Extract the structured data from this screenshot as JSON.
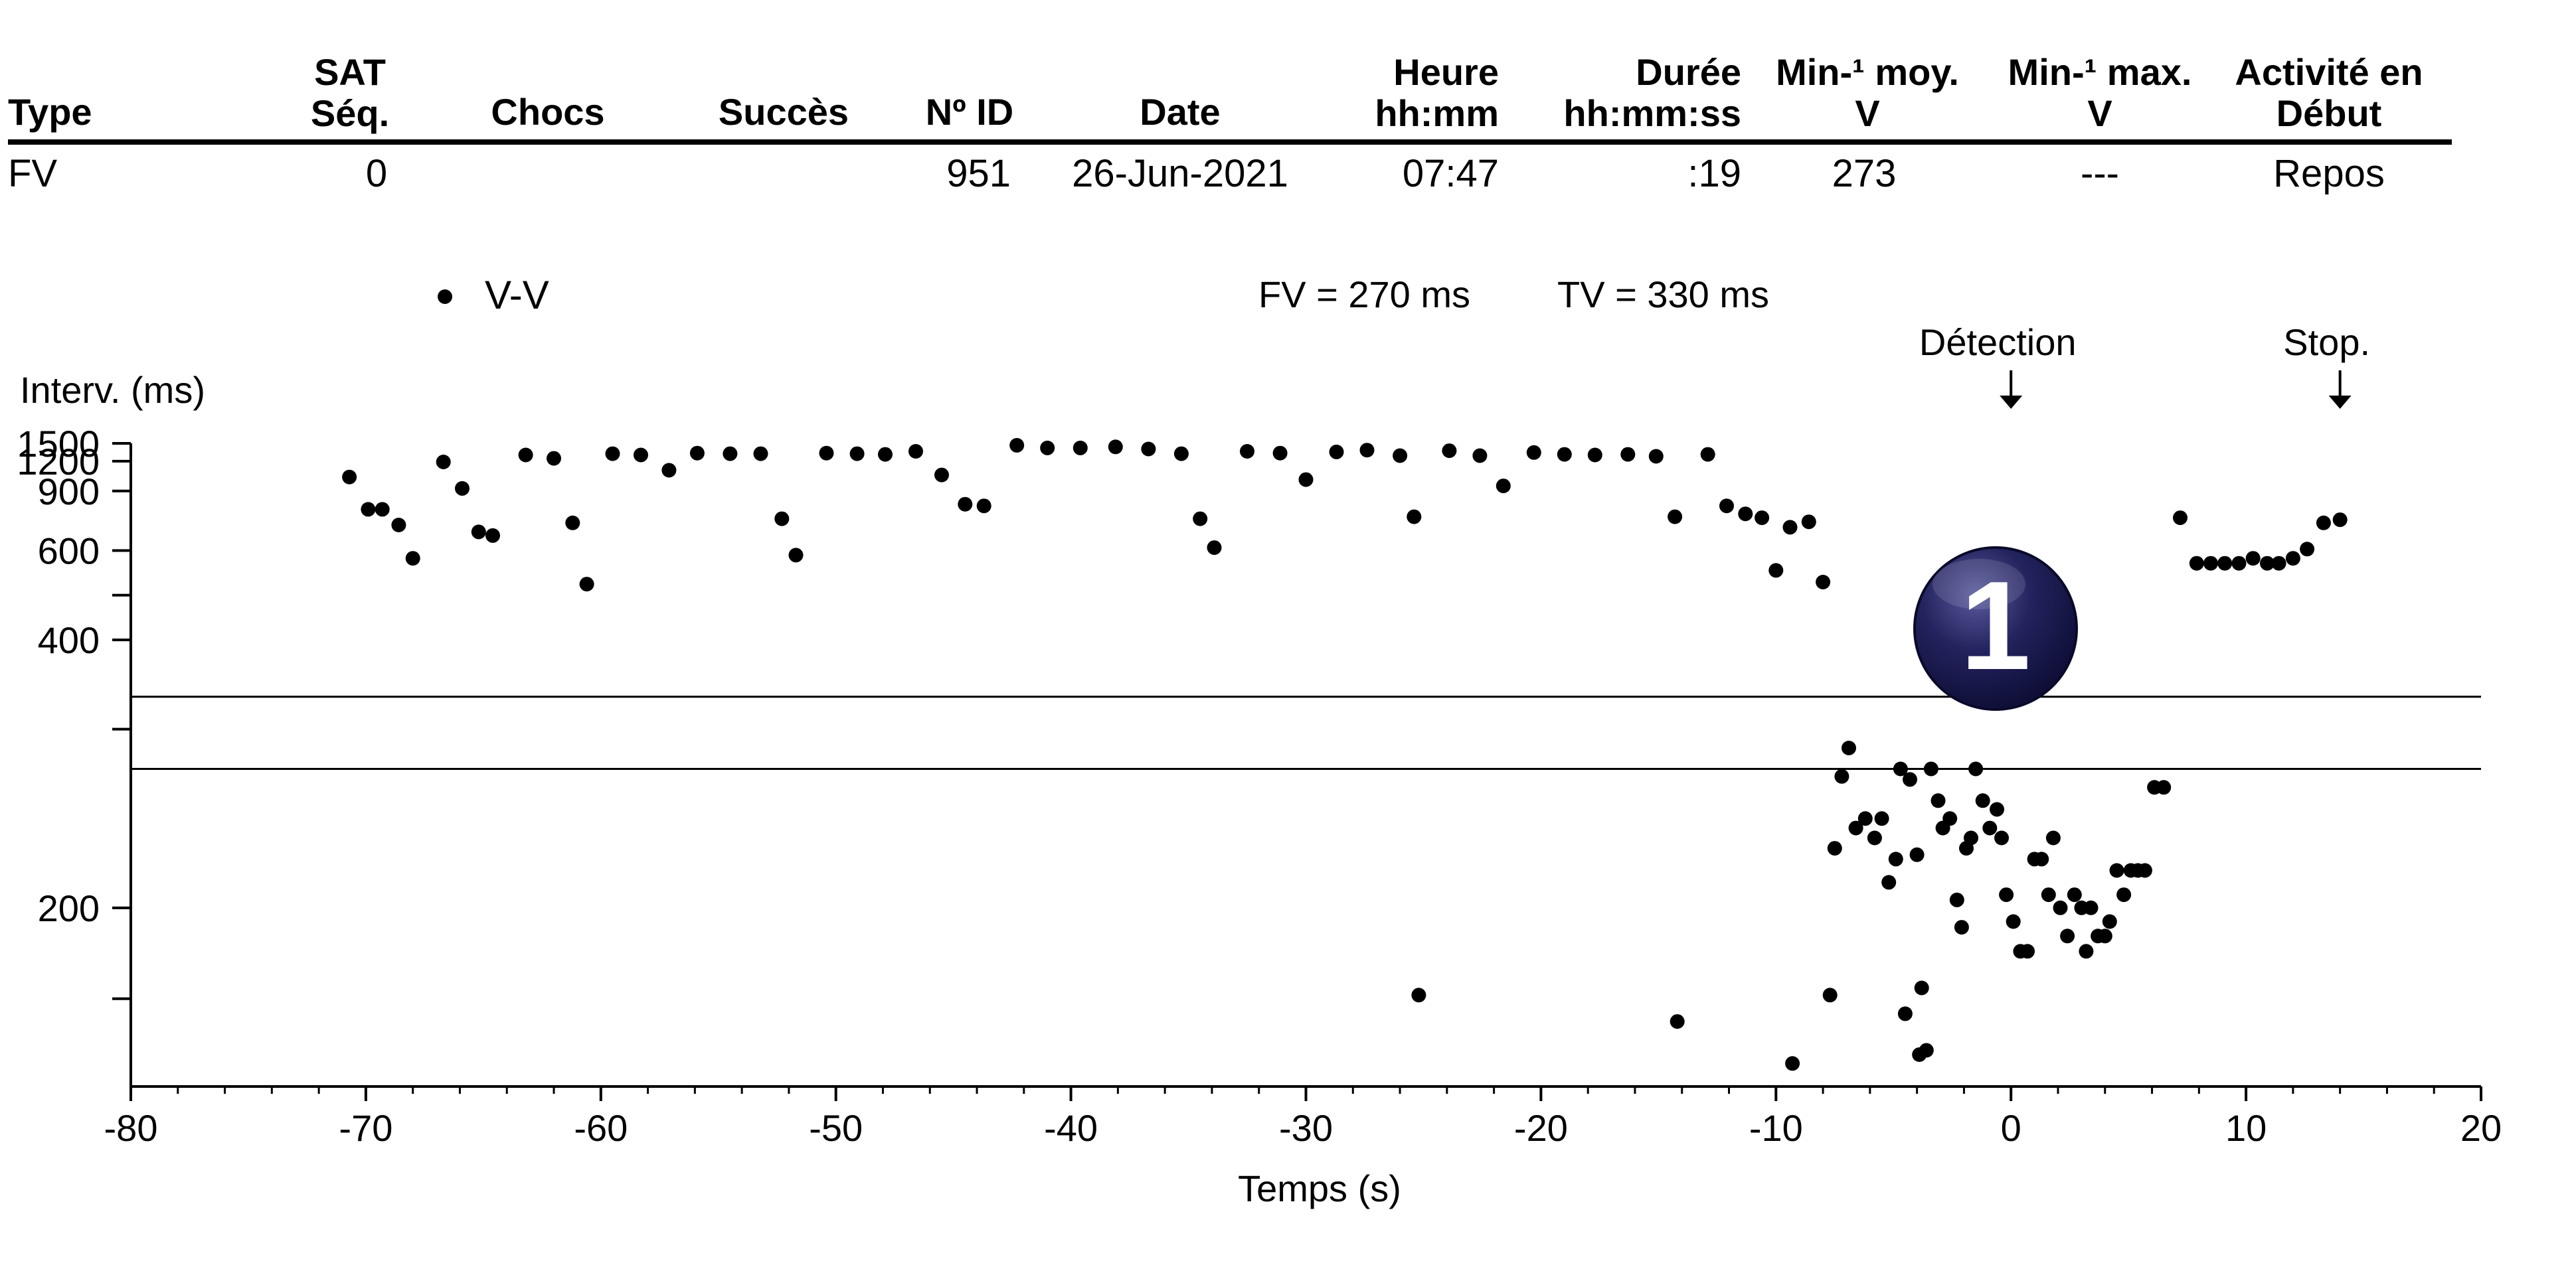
{
  "table": {
    "headers": [
      {
        "key": "type",
        "lines": [
          "Type"
        ]
      },
      {
        "key": "sat",
        "lines": [
          "SAT",
          "Séq."
        ]
      },
      {
        "key": "chocs",
        "lines": [
          "Chocs"
        ]
      },
      {
        "key": "succes",
        "lines": [
          "Succès"
        ]
      },
      {
        "key": "id",
        "lines": [
          "Nº ID"
        ]
      },
      {
        "key": "date",
        "lines": [
          "Date"
        ]
      },
      {
        "key": "heure",
        "lines": [
          "Heure",
          "hh:mm"
        ]
      },
      {
        "key": "duree",
        "lines": [
          "Durée",
          "hh:mm:ss"
        ]
      },
      {
        "key": "moy",
        "lines": [
          "Min-¹ moy.",
          "V"
        ]
      },
      {
        "key": "max",
        "lines": [
          "Min-¹ max.",
          "V"
        ]
      },
      {
        "key": "activite",
        "lines": [
          "Activité en",
          "Début"
        ]
      }
    ],
    "row": {
      "type": "FV",
      "sat": "0",
      "chocs": "",
      "succes": "",
      "id": "951",
      "date": "26-Jun-2021",
      "heure": "07:47",
      "duree": ":19",
      "moy": "273",
      "max": "---",
      "activite": "Repos"
    }
  },
  "episode_badge": "1",
  "chart_data": {
    "type": "scatter",
    "legend": {
      "marker": "dot",
      "label": "V-V",
      "position": "top-left"
    },
    "ylabel": "Interv. (ms)",
    "xlabel": "Temps (s)",
    "xlim": [
      -80,
      20
    ],
    "x_ticks": [
      -80,
      -70,
      -60,
      -50,
      -40,
      -30,
      -20,
      -10,
      0,
      10,
      20
    ],
    "y_scale": "reciprocal",
    "ylim": [
      150,
      1500
    ],
    "y_tick_labels": [
      1500,
      1200,
      900,
      600,
      400,
      200
    ],
    "y_minor_ticks": [
      480,
      300,
      171
    ],
    "thresholds": [
      {
        "label": "FV = 270 ms",
        "value": 270
      },
      {
        "label": "TV = 330 ms",
        "value": 330
      }
    ],
    "annotations": [
      {
        "label": "Détection",
        "x": 0
      },
      {
        "label": "Stop.",
        "x": 14
      }
    ],
    "series": [
      {
        "points": [
          [
            -70.7,
            1020
          ],
          [
            -69.9,
            780
          ],
          [
            -69.3,
            780
          ],
          [
            -68.6,
            700
          ],
          [
            -68.0,
            575
          ],
          [
            -66.7,
            1190
          ],
          [
            -65.9,
            920
          ],
          [
            -65.2,
            670
          ],
          [
            -64.6,
            655
          ],
          [
            -63.2,
            1290
          ],
          [
            -62.0,
            1240
          ],
          [
            -61.2,
            710
          ],
          [
            -60.6,
            505
          ],
          [
            -59.5,
            1310
          ],
          [
            -58.3,
            1290
          ],
          [
            -57.1,
            1090
          ],
          [
            -55.9,
            1320
          ],
          [
            -54.5,
            1310
          ],
          [
            -53.2,
            1310
          ],
          [
            -52.3,
            730
          ],
          [
            -51.7,
            585
          ],
          [
            -50.4,
            1320
          ],
          [
            -49.1,
            1310
          ],
          [
            -47.9,
            1300
          ],
          [
            -46.6,
            1350
          ],
          [
            -45.5,
            1040
          ],
          [
            -44.5,
            810
          ],
          [
            -43.7,
            800
          ],
          [
            -42.3,
            1460
          ],
          [
            -41.0,
            1410
          ],
          [
            -39.6,
            1410
          ],
          [
            -38.1,
            1430
          ],
          [
            -36.7,
            1390
          ],
          [
            -35.3,
            1310
          ],
          [
            -34.5,
            730
          ],
          [
            -33.9,
            610
          ],
          [
            -32.5,
            1350
          ],
          [
            -31.1,
            1320
          ],
          [
            -30.0,
            995
          ],
          [
            -28.7,
            1340
          ],
          [
            -27.4,
            1370
          ],
          [
            -26.0,
            1280
          ],
          [
            -25.4,
            740
          ],
          [
            -23.9,
            1360
          ],
          [
            -22.6,
            1280
          ],
          [
            -21.6,
            940
          ],
          [
            -20.3,
            1330
          ],
          [
            -19.0,
            1300
          ],
          [
            -17.7,
            1290
          ],
          [
            -16.3,
            1300
          ],
          [
            -15.1,
            1270
          ],
          [
            -14.3,
            740
          ],
          [
            -12.9,
            1300
          ],
          [
            -12.1,
            800
          ],
          [
            -11.3,
            755
          ],
          [
            -10.6,
            735
          ],
          [
            -10.0,
            540
          ],
          [
            -9.4,
            690
          ],
          [
            -8.6,
            715
          ],
          [
            -8.0,
            510
          ],
          [
            -25.2,
            172
          ],
          [
            -14.2,
            165
          ],
          [
            -9.3,
            155
          ],
          [
            -7.7,
            172
          ],
          [
            -7.5,
            225
          ],
          [
            -7.2,
            265
          ],
          [
            -6.9,
            285
          ],
          [
            -6.6,
            235
          ],
          [
            -6.2,
            240
          ],
          [
            -5.8,
            230
          ],
          [
            -5.5,
            240
          ],
          [
            -5.2,
            210
          ],
          [
            -4.9,
            220
          ],
          [
            -4.7,
            270
          ],
          [
            -4.5,
            167
          ],
          [
            -4.3,
            263
          ],
          [
            -4.0,
            222
          ],
          [
            -3.9,
            157
          ],
          [
            -3.8,
            174
          ],
          [
            -3.6,
            158
          ],
          [
            -3.4,
            270
          ],
          [
            -3.1,
            250
          ],
          [
            -2.9,
            235
          ],
          [
            -2.6,
            240
          ],
          [
            -2.3,
            203
          ],
          [
            -2.1,
            193
          ],
          [
            -1.9,
            225
          ],
          [
            -1.7,
            230
          ],
          [
            -1.5,
            270
          ],
          [
            -1.2,
            250
          ],
          [
            -0.9,
            235
          ],
          [
            -0.6,
            245
          ],
          [
            -0.4,
            230
          ],
          [
            -0.2,
            205
          ],
          [
            0.1,
            195
          ],
          [
            0.4,
            185
          ],
          [
            0.7,
            185
          ],
          [
            1.0,
            220
          ],
          [
            1.3,
            220
          ],
          [
            1.6,
            205
          ],
          [
            1.8,
            230
          ],
          [
            2.1,
            200
          ],
          [
            2.4,
            190
          ],
          [
            2.7,
            205
          ],
          [
            3.0,
            200
          ],
          [
            3.2,
            185
          ],
          [
            3.4,
            200
          ],
          [
            3.7,
            190
          ],
          [
            4.0,
            190
          ],
          [
            4.2,
            195
          ],
          [
            4.5,
            215
          ],
          [
            4.8,
            205
          ],
          [
            5.1,
            215
          ],
          [
            5.4,
            215
          ],
          [
            5.7,
            215
          ],
          [
            6.1,
            258
          ],
          [
            6.5,
            258
          ],
          [
            7.2,
            735
          ],
          [
            7.9,
            560
          ],
          [
            8.5,
            560
          ],
          [
            9.1,
            560
          ],
          [
            9.7,
            560
          ],
          [
            10.3,
            575
          ],
          [
            10.9,
            560
          ],
          [
            11.4,
            560
          ],
          [
            12.0,
            575
          ],
          [
            12.6,
            605
          ],
          [
            13.3,
            710
          ],
          [
            14.0,
            725
          ]
        ]
      }
    ]
  }
}
